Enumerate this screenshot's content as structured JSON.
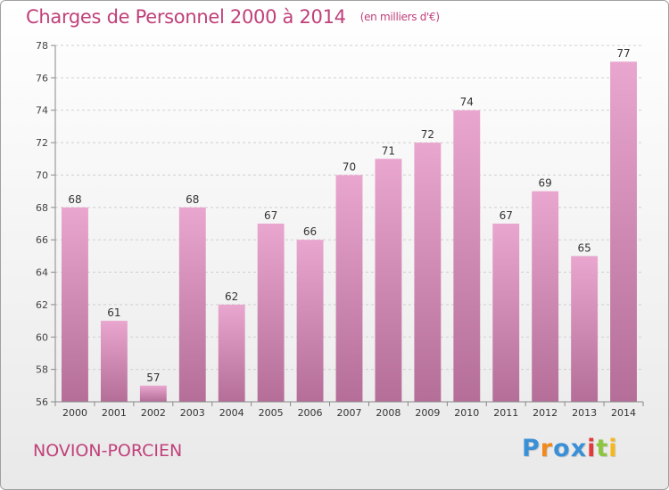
{
  "title": "Charges de Personnel 2000 à 2014",
  "subtitle": "(en milliers d'€)",
  "commune": "NOVION-PORCIEN",
  "logo": {
    "letters": [
      "P",
      "r",
      "o",
      "x",
      "i",
      "t",
      "i"
    ],
    "colors": [
      "#3a8fd6",
      "#f08a1c",
      "#3a8fd6",
      "#3a8fd6",
      "#e23a3a",
      "#8cc63e",
      "#f5b81c"
    ]
  },
  "colors": {
    "accent": "#c0407a",
    "bar_top": "#e9a6ce",
    "bar_bottom": "#b46e98"
  },
  "chart_data": {
    "type": "bar",
    "title": "Charges de Personnel 2000 à 2014",
    "subtitle": "(en milliers d'€)",
    "categories": [
      "2000",
      "2001",
      "2002",
      "2003",
      "2004",
      "2005",
      "2006",
      "2007",
      "2008",
      "2009",
      "2010",
      "2011",
      "2012",
      "2013",
      "2014"
    ],
    "values": [
      68,
      61,
      57,
      68,
      62,
      67,
      66,
      70,
      71,
      72,
      74,
      67,
      69,
      65,
      77
    ],
    "ylim": [
      56,
      78
    ],
    "yticks": [
      56,
      58,
      60,
      62,
      64,
      66,
      68,
      70,
      72,
      74,
      76,
      78
    ],
    "grid": true,
    "data_labels": true
  }
}
